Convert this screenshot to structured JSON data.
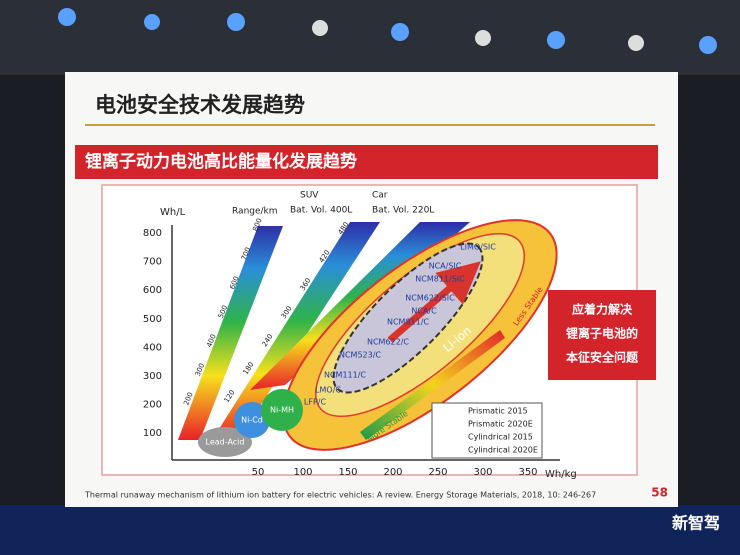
{
  "slide": {
    "title": "电池安全技术发展趋势",
    "banner": "锂离子动力电池高比能量化发展趋势",
    "callout": [
      "应着力解决",
      "锂离子电池的",
      "本征安全问题"
    ],
    "y_axis_label": "Wh/L",
    "x_axis_label": "Wh/kg",
    "y_ticks": [
      "800",
      "700",
      "600",
      "500",
      "400",
      "300",
      "200",
      "100"
    ],
    "x_ticks": [
      "50",
      "100",
      "150",
      "200",
      "250",
      "300",
      "350"
    ],
    "range_label": "Range/km",
    "suv_label": [
      "SUV",
      "Bat. Vol. 400L"
    ],
    "car_label": [
      "Car",
      "Bat. Vol. 220L"
    ],
    "band1_ticks": [
      "200",
      "300",
      "400",
      "500",
      "600",
      "700",
      "800"
    ],
    "band2_ticks": [
      "120",
      "180",
      "240",
      "300",
      "360",
      "420",
      "480"
    ],
    "chemistries": [
      "Lead-Acid",
      "Ni-Cd",
      "Ni-MH"
    ],
    "li_labels": [
      "LIMO/SIC",
      "NCA/SIC",
      "NCM811/SIC",
      "NCM622/SIC",
      "NCA/C",
      "NCM811/C",
      "NCM622/C",
      "NCM523/C",
      "NCM111/C",
      "LMO/C",
      "LFP/C"
    ],
    "li_ion": "Li-ion",
    "less_stable": "Less Stable",
    "more_stable": "More Stable",
    "legend": [
      "Prismatic 2015",
      "Prismatic 2020E",
      "Cylindrical 2015",
      "Cylindrical 2020E"
    ],
    "citation": "Thermal runaway mechanism of lithium ion battery for electric vehicles: A review. Energy Storage Materials, 2018, 10: 246-267",
    "page_number": "58",
    "watermark": "新智驾"
  }
}
